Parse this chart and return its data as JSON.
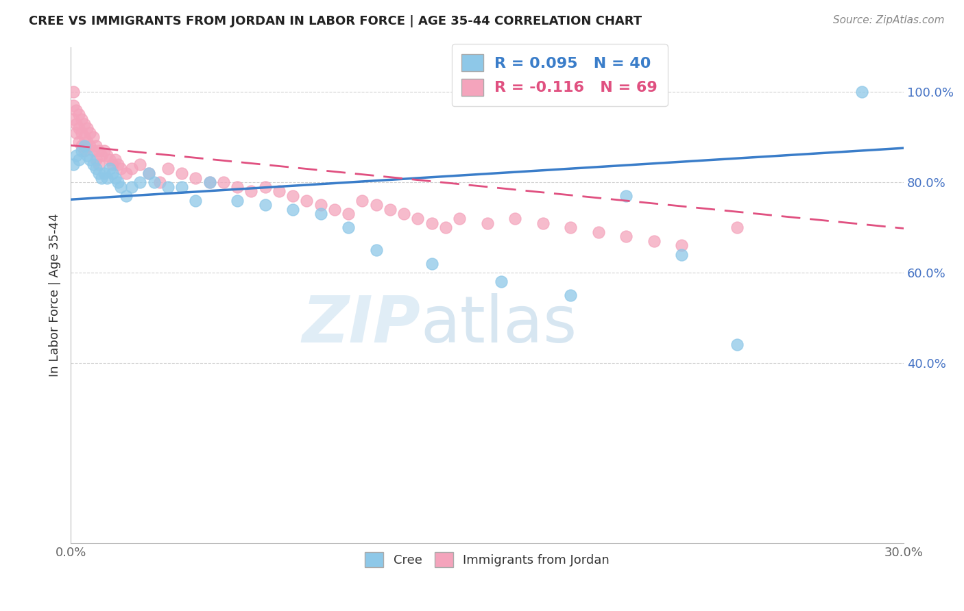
{
  "title": "CREE VS IMMIGRANTS FROM JORDAN IN LABOR FORCE | AGE 35-44 CORRELATION CHART",
  "source": "Source: ZipAtlas.com",
  "ylabel": "In Labor Force | Age 35-44",
  "xlim": [
    0.0,
    0.3
  ],
  "ylim": [
    0.0,
    1.1
  ],
  "yticks": [
    0.4,
    0.6,
    0.8,
    1.0
  ],
  "ytick_labels": [
    "40.0%",
    "60.0%",
    "80.0%",
    "100.0%"
  ],
  "xtick_positions": [
    0.0,
    0.05,
    0.1,
    0.15,
    0.2,
    0.25,
    0.3
  ],
  "xtick_labels": [
    "0.0%",
    "",
    "",
    "",
    "",
    "",
    "30.0%"
  ],
  "cree_R": 0.095,
  "cree_N": 40,
  "jordan_R": -0.116,
  "jordan_N": 69,
  "cree_color": "#8ec8e8",
  "jordan_color": "#f4a4bc",
  "cree_line_color": "#3a7dc9",
  "jordan_line_color": "#e05080",
  "watermark_zip": "ZIP",
  "watermark_atlas": "atlas",
  "cree_x": [
    0.001,
    0.002,
    0.003,
    0.004,
    0.005,
    0.006,
    0.007,
    0.008,
    0.009,
    0.01,
    0.011,
    0.012,
    0.013,
    0.014,
    0.015,
    0.016,
    0.017,
    0.018,
    0.02,
    0.022,
    0.025,
    0.028,
    0.03,
    0.035,
    0.04,
    0.045,
    0.05,
    0.06,
    0.07,
    0.08,
    0.09,
    0.1,
    0.11,
    0.13,
    0.155,
    0.18,
    0.2,
    0.22,
    0.24,
    0.285
  ],
  "cree_y": [
    0.84,
    0.86,
    0.85,
    0.87,
    0.88,
    0.86,
    0.85,
    0.84,
    0.83,
    0.82,
    0.81,
    0.82,
    0.81,
    0.83,
    0.82,
    0.81,
    0.8,
    0.79,
    0.77,
    0.79,
    0.8,
    0.82,
    0.8,
    0.79,
    0.79,
    0.76,
    0.8,
    0.76,
    0.75,
    0.74,
    0.73,
    0.7,
    0.65,
    0.62,
    0.58,
    0.55,
    0.77,
    0.64,
    0.44,
    1.0
  ],
  "jordan_x": [
    0.001,
    0.001,
    0.001,
    0.002,
    0.002,
    0.002,
    0.003,
    0.003,
    0.003,
    0.004,
    0.004,
    0.004,
    0.005,
    0.005,
    0.005,
    0.006,
    0.006,
    0.007,
    0.007,
    0.008,
    0.008,
    0.009,
    0.009,
    0.01,
    0.01,
    0.011,
    0.012,
    0.013,
    0.014,
    0.015,
    0.016,
    0.017,
    0.018,
    0.02,
    0.022,
    0.025,
    0.028,
    0.032,
    0.035,
    0.04,
    0.045,
    0.05,
    0.055,
    0.06,
    0.065,
    0.07,
    0.075,
    0.08,
    0.085,
    0.09,
    0.095,
    0.1,
    0.105,
    0.11,
    0.115,
    0.12,
    0.125,
    0.13,
    0.135,
    0.14,
    0.15,
    0.16,
    0.17,
    0.18,
    0.19,
    0.2,
    0.21,
    0.22,
    0.24
  ],
  "jordan_y": [
    1.0,
    0.97,
    0.94,
    0.96,
    0.93,
    0.91,
    0.95,
    0.92,
    0.89,
    0.94,
    0.91,
    0.88,
    0.93,
    0.9,
    0.87,
    0.92,
    0.89,
    0.91,
    0.88,
    0.9,
    0.87,
    0.88,
    0.85,
    0.87,
    0.84,
    0.86,
    0.87,
    0.86,
    0.85,
    0.84,
    0.85,
    0.84,
    0.83,
    0.82,
    0.83,
    0.84,
    0.82,
    0.8,
    0.83,
    0.82,
    0.81,
    0.8,
    0.8,
    0.79,
    0.78,
    0.79,
    0.78,
    0.77,
    0.76,
    0.75,
    0.74,
    0.73,
    0.76,
    0.75,
    0.74,
    0.73,
    0.72,
    0.71,
    0.7,
    0.72,
    0.71,
    0.72,
    0.71,
    0.7,
    0.69,
    0.68,
    0.67,
    0.66,
    0.7
  ],
  "cree_line_x": [
    0.0,
    0.3
  ],
  "cree_line_y": [
    0.762,
    0.876
  ],
  "jordan_line_x": [
    0.0,
    0.3
  ],
  "jordan_line_y": [
    0.882,
    0.698
  ]
}
